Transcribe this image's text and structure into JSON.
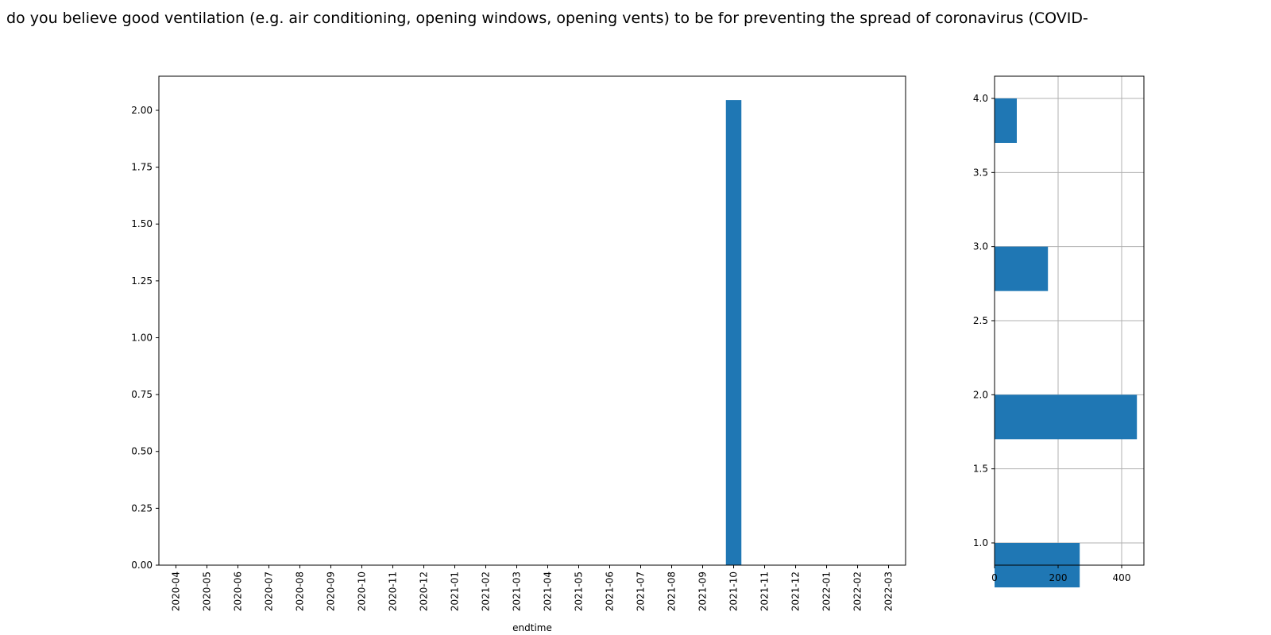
{
  "title": "do you believe good ventilation (e.g. air conditioning, opening windows, opening vents) to be for preventing the spread of coronavirus (COVID-",
  "colors": {
    "bar": "#1f77b4",
    "grid": "#b0b0b0",
    "axis": "#000000"
  },
  "chart_data": [
    {
      "type": "bar",
      "xlabel": "endtime",
      "ylabel": "",
      "categories": [
        "2020-04",
        "2020-05",
        "2020-06",
        "2020-07",
        "2020-08",
        "2020-09",
        "2020-10",
        "2020-11",
        "2020-12",
        "2021-01",
        "2021-02",
        "2021-03",
        "2021-04",
        "2021-05",
        "2021-06",
        "2021-07",
        "2021-08",
        "2021-09",
        "2021-10",
        "2021-11",
        "2021-12",
        "2022-01",
        "2022-02",
        "2022-03"
      ],
      "values": [
        0,
        0,
        0,
        0,
        0,
        0,
        0,
        0,
        0,
        0,
        0,
        0,
        0,
        0,
        0,
        0,
        0,
        0,
        2.045,
        0,
        0,
        0,
        0,
        0
      ],
      "ylim": [
        0,
        2.15
      ],
      "yticks": [
        "0.00",
        "0.25",
        "0.50",
        "0.75",
        "1.00",
        "1.25",
        "1.50",
        "1.75",
        "2.00"
      ],
      "grid": false
    },
    {
      "type": "bar",
      "orientation": "horizontal",
      "categories": [
        1.0,
        2.0,
        3.0,
        4.0
      ],
      "values": [
        268,
        448,
        168,
        70
      ],
      "xlim": [
        0,
        470
      ],
      "ylim": [
        0.85,
        4.15
      ],
      "xticks": [
        "0",
        "200",
        "400"
      ],
      "yticks": [
        "1.0",
        "1.5",
        "2.0",
        "2.5",
        "3.0",
        "3.5",
        "4.0"
      ],
      "grid": true
    }
  ]
}
